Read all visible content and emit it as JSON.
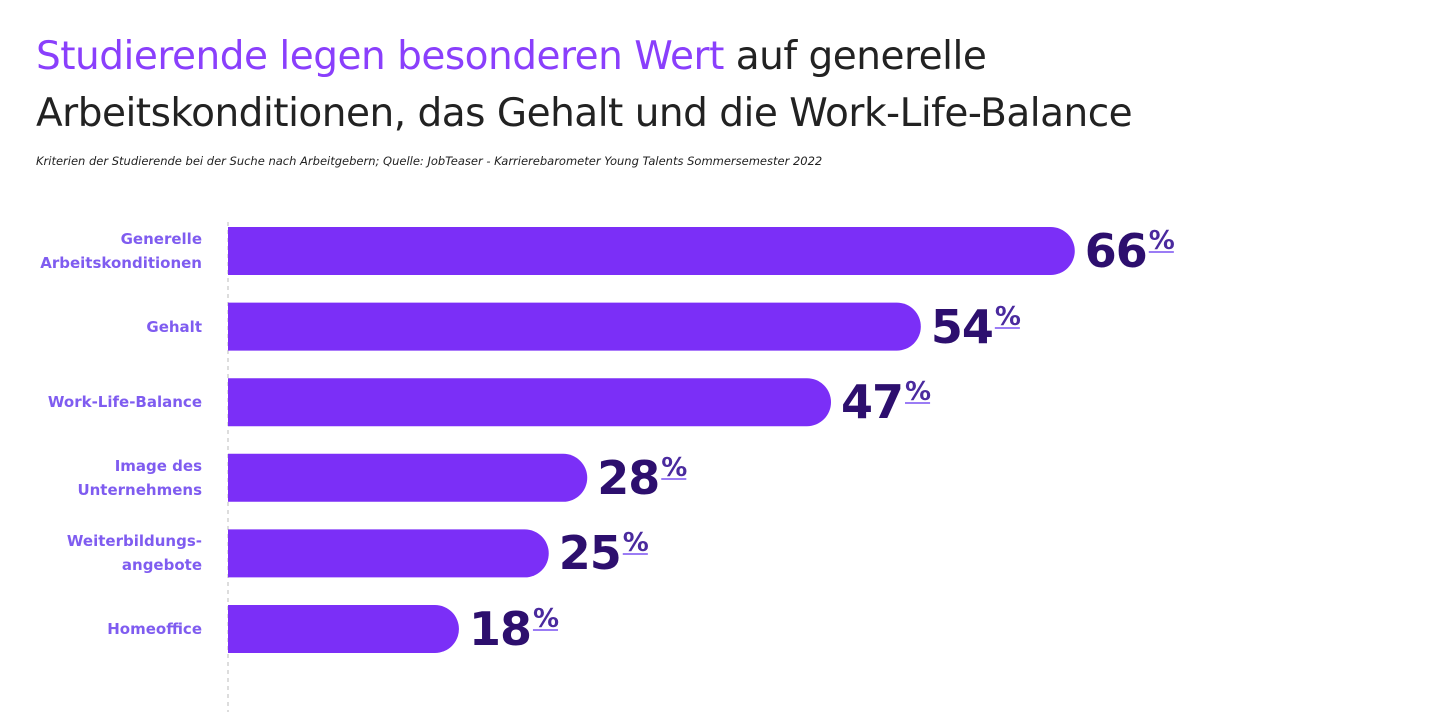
{
  "chart_data": {
    "type": "bar",
    "orientation": "horizontal",
    "title_lead": "Studierende legen besonderen Wert",
    "title": "auf generelle Arbeitskonditionen, das Gehalt und die Work-Life-Balance",
    "subtitle": "Kriterien der Studierende bei der Suche nach Arbeitgebern; Quelle: JobTeaser - Karrierebarometer Young Talents Sommersemester 2022",
    "categories": [
      "Generelle Arbeitskonditionen",
      "Gehalt",
      "Work-Life-Balance",
      "Image des Unternehmens",
      "Weiterbildungs-angebote",
      "Homeoffice"
    ],
    "values": [
      66,
      54,
      47,
      28,
      25,
      18
    ],
    "unit": "%",
    "color": "#7b2ff7"
  }
}
